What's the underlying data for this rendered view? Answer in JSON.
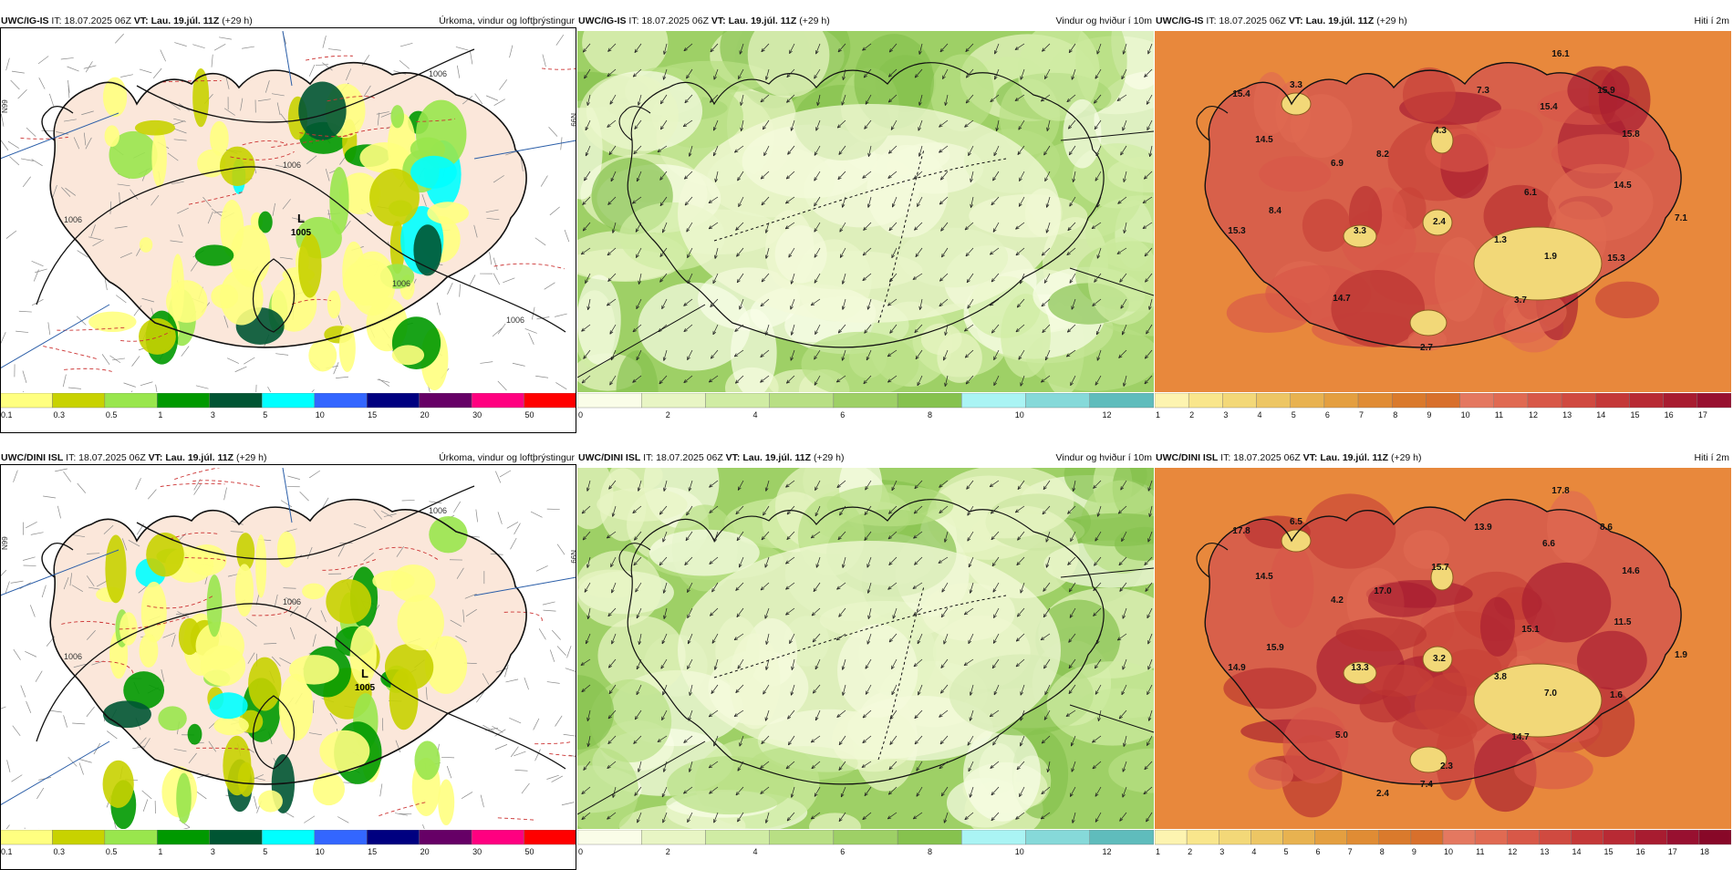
{
  "panels": [
    {
      "id": "igis-precip",
      "model": "UWC/IG-IS",
      "it_label": "IT: 18.07.2025 06Z",
      "vt_label": "VT: Lau. 19.júl. 11Z",
      "lead": "(+29 h)",
      "product": "Úrkoma, vindur og loftþrýstingur",
      "kind": "precip",
      "lows": [
        {
          "label": "L",
          "value": "1005"
        }
      ],
      "isobars": [
        "1006",
        "1006",
        "1006",
        "1006",
        "1006"
      ],
      "temps": []
    },
    {
      "id": "igis-wind",
      "model": "UWC/IG-IS",
      "it_label": "IT: 18.07.2025 06Z",
      "vt_label": "VT: Lau. 19.júl. 11Z",
      "lead": "(+29 h)",
      "product": "Vindur og hviður í 10m",
      "kind": "wind",
      "lows": [],
      "isobars": [],
      "temps": []
    },
    {
      "id": "igis-temp",
      "model": "UWC/IG-IS",
      "it_label": "IT: 18.07.2025 06Z",
      "vt_label": "VT: Lau. 19.júl. 11Z",
      "lead": "(+29 h)",
      "product": "Hiti í 2m",
      "kind": "temp",
      "lows": [],
      "isobars": [],
      "temps": [
        "16.1",
        "15.4",
        "3.3",
        "7.3",
        "15.4",
        "15.9",
        "14.5",
        "4.3",
        "6.9",
        "8.2",
        "15.8",
        "6.1",
        "14.5",
        "8.4",
        "15.3",
        "3.3",
        "2.4",
        "7.1",
        "1.3",
        "1.9",
        "15.3",
        "14.7",
        "3.7",
        "2.7"
      ]
    },
    {
      "id": "dini-precip",
      "model": "UWC/DINI ISL",
      "it_label": "IT: 18.07.2025 06Z",
      "vt_label": "VT: Lau. 19.júl. 11Z",
      "lead": "(+29 h)",
      "product": "Úrkoma, vindur og loftþrýstingur",
      "kind": "precip",
      "lows": [
        {
          "label": "L",
          "value": "1005"
        }
      ],
      "isobars": [
        "1006",
        "1006",
        "1006"
      ],
      "temps": []
    },
    {
      "id": "dini-wind",
      "model": "UWC/DINI ISL",
      "it_label": "IT: 18.07.2025 06Z",
      "vt_label": "VT: Lau. 19.júl. 11Z",
      "lead": "(+29 h)",
      "product": "Vindur og hviður í 10m",
      "kind": "wind",
      "lows": [],
      "isobars": [],
      "temps": []
    },
    {
      "id": "dini-temp",
      "model": "UWC/DINI ISL",
      "it_label": "IT: 18.07.2025 06Z",
      "vt_label": "VT: Lau. 19.júl. 11Z",
      "lead": "(+29 h)",
      "product": "Hiti í 2m",
      "kind": "temp",
      "lows": [],
      "isobars": [],
      "temps": [
        "17.8",
        "17.8",
        "6.5",
        "13.9",
        "6.6",
        "8.6",
        "14.5",
        "15.7",
        "4.2",
        "17.0",
        "14.6",
        "15.1",
        "11.5",
        "15.9",
        "14.9",
        "13.3",
        "3.2",
        "1.9",
        "3.8",
        "7.0",
        "1.6",
        "5.0",
        "14.7",
        "7.4",
        "2.3",
        "2.4"
      ]
    }
  ],
  "scales": {
    "precip": {
      "labels": [
        "0.1",
        "0.3",
        "0.5",
        "1",
        "3",
        "5",
        "10",
        "15",
        "20",
        "30",
        "50"
      ],
      "colors": [
        "#ffff80",
        "#c8d200",
        "#99e64d",
        "#009900",
        "#005533",
        "#00ffff",
        "#3366ff",
        "#000080",
        "#660066",
        "#ff0080",
        "#ff0000"
      ]
    },
    "wind": {
      "labels": [
        "0",
        "2",
        "4",
        "6",
        "8",
        "10",
        "12"
      ],
      "colors": [
        "#fafde8",
        "#e8f5c4",
        "#d0eca4",
        "#b8df84",
        "#9ed066",
        "#86c24e",
        "#aaf4f4",
        "#86d9d9",
        "#5fbcbc"
      ]
    },
    "temp_igis": {
      "labels": [
        "1",
        "2",
        "3",
        "4",
        "5",
        "6",
        "7",
        "8",
        "9",
        "10",
        "11",
        "12",
        "13",
        "14",
        "15",
        "16",
        "17"
      ],
      "colors": [
        "#fdf4b0",
        "#f9e68c",
        "#f3d878",
        "#edc664",
        "#e8b250",
        "#e49f40",
        "#e08c34",
        "#da7a2c",
        "#d8702c",
        "#e47860",
        "#e06a52",
        "#d85848",
        "#d04a40",
        "#c43838",
        "#b82a34",
        "#a81c30",
        "#981030"
      ]
    },
    "temp_dini": {
      "labels": [
        "1",
        "2",
        "3",
        "4",
        "5",
        "6",
        "7",
        "8",
        "9",
        "10",
        "11",
        "12",
        "13",
        "14",
        "15",
        "16",
        "17",
        "18"
      ],
      "colors": [
        "#fdf4b0",
        "#f9e68c",
        "#f3d878",
        "#edc664",
        "#e8b250",
        "#e49f40",
        "#e08c34",
        "#da7a2c",
        "#d8702c",
        "#e47860",
        "#e06a52",
        "#d85848",
        "#d04a40",
        "#c43838",
        "#b82a34",
        "#a81c30",
        "#981030",
        "#880828"
      ]
    }
  },
  "lat_labels": [
    "N99",
    "N99",
    "N99",
    "N99"
  ]
}
